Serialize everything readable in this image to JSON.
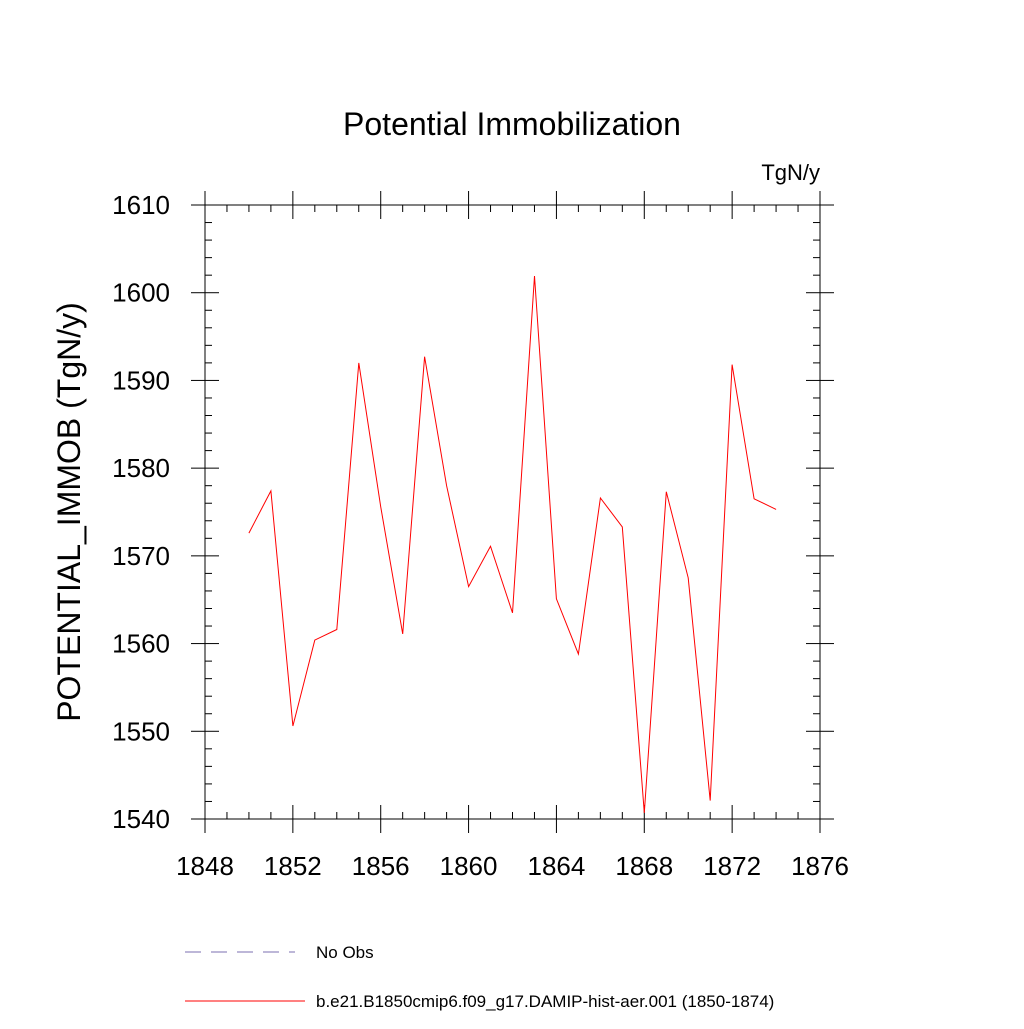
{
  "chart_data": {
    "type": "line",
    "title": "Potential Immobilization",
    "units_label": "TgN/y",
    "ylabel": "POTENTIAL_IMMOB  (TgN/y)",
    "xlabel": "",
    "xlim": [
      1848,
      1876
    ],
    "ylim": [
      1540,
      1610
    ],
    "x_ticks": [
      1848,
      1852,
      1856,
      1860,
      1864,
      1868,
      1872,
      1876
    ],
    "y_ticks": [
      1540,
      1550,
      1560,
      1570,
      1580,
      1590,
      1600,
      1610
    ],
    "grid": false,
    "series": [
      {
        "name": "b.e21.B1850cmip6.f09_g17.DAMIP-hist-aer.001 (1850-1874)",
        "color": "#ff0000",
        "x": [
          1850,
          1851,
          1852,
          1853,
          1854,
          1855,
          1856,
          1857,
          1858,
          1859,
          1860,
          1861,
          1862,
          1863,
          1864,
          1865,
          1866,
          1867,
          1868,
          1869,
          1870,
          1871,
          1872,
          1873,
          1874
        ],
        "y": [
          1572.6,
          1577.4,
          1550.6,
          1560.4,
          1561.6,
          1592.0,
          1575.6,
          1561.1,
          1592.7,
          1578.0,
          1566.5,
          1571.1,
          1563.5,
          1601.9,
          1565.1,
          1558.8,
          1576.6,
          1573.3,
          1540.7,
          1577.3,
          1567.5,
          1542.1,
          1591.8,
          1576.5,
          1575.3
        ]
      }
    ],
    "legend": {
      "placement": "bottom",
      "entries": [
        {
          "label": "No Obs",
          "color": "#7b6fb0",
          "style": "dashed"
        },
        {
          "label": "b.e21.B1850cmip6.f09_g17.DAMIP-hist-aer.001 (1850-1874)",
          "color": "#ff0000",
          "style": "solid"
        }
      ]
    }
  }
}
